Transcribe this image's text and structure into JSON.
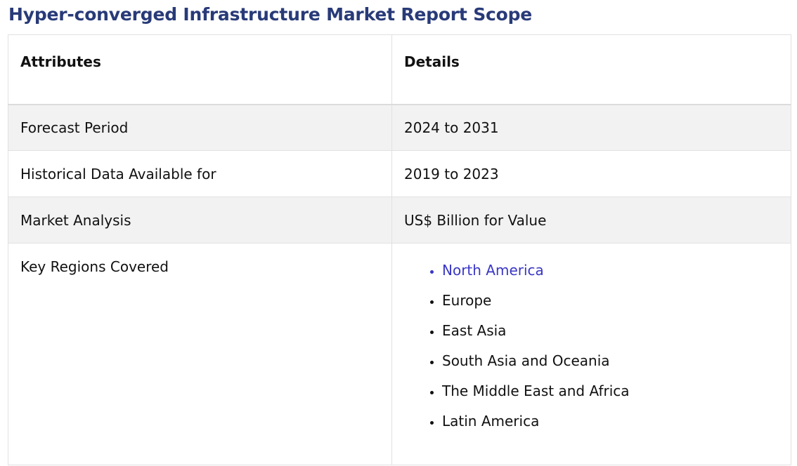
{
  "title": "Hyper-converged Infrastructure Market Report Scope",
  "table": {
    "headers": [
      "Attributes",
      "Details"
    ],
    "rows": [
      {
        "attribute": "Forecast Period",
        "detail": "2024 to 2031"
      },
      {
        "attribute": "Historical Data Available for",
        "detail": "2019 to 2023"
      },
      {
        "attribute": "Market Analysis",
        "detail": "US$ Billion for Value"
      },
      {
        "attribute": "Key Regions Covered"
      }
    ],
    "regions": [
      "North America",
      "Europe",
      "East Asia",
      "South Asia and Oceania",
      "The Middle East and Africa",
      "Latin America"
    ]
  },
  "colors": {
    "title": "#283a78",
    "link": "#3a37c4",
    "row_shade": "#f2f2f2",
    "border": "#e1e1e1"
  }
}
